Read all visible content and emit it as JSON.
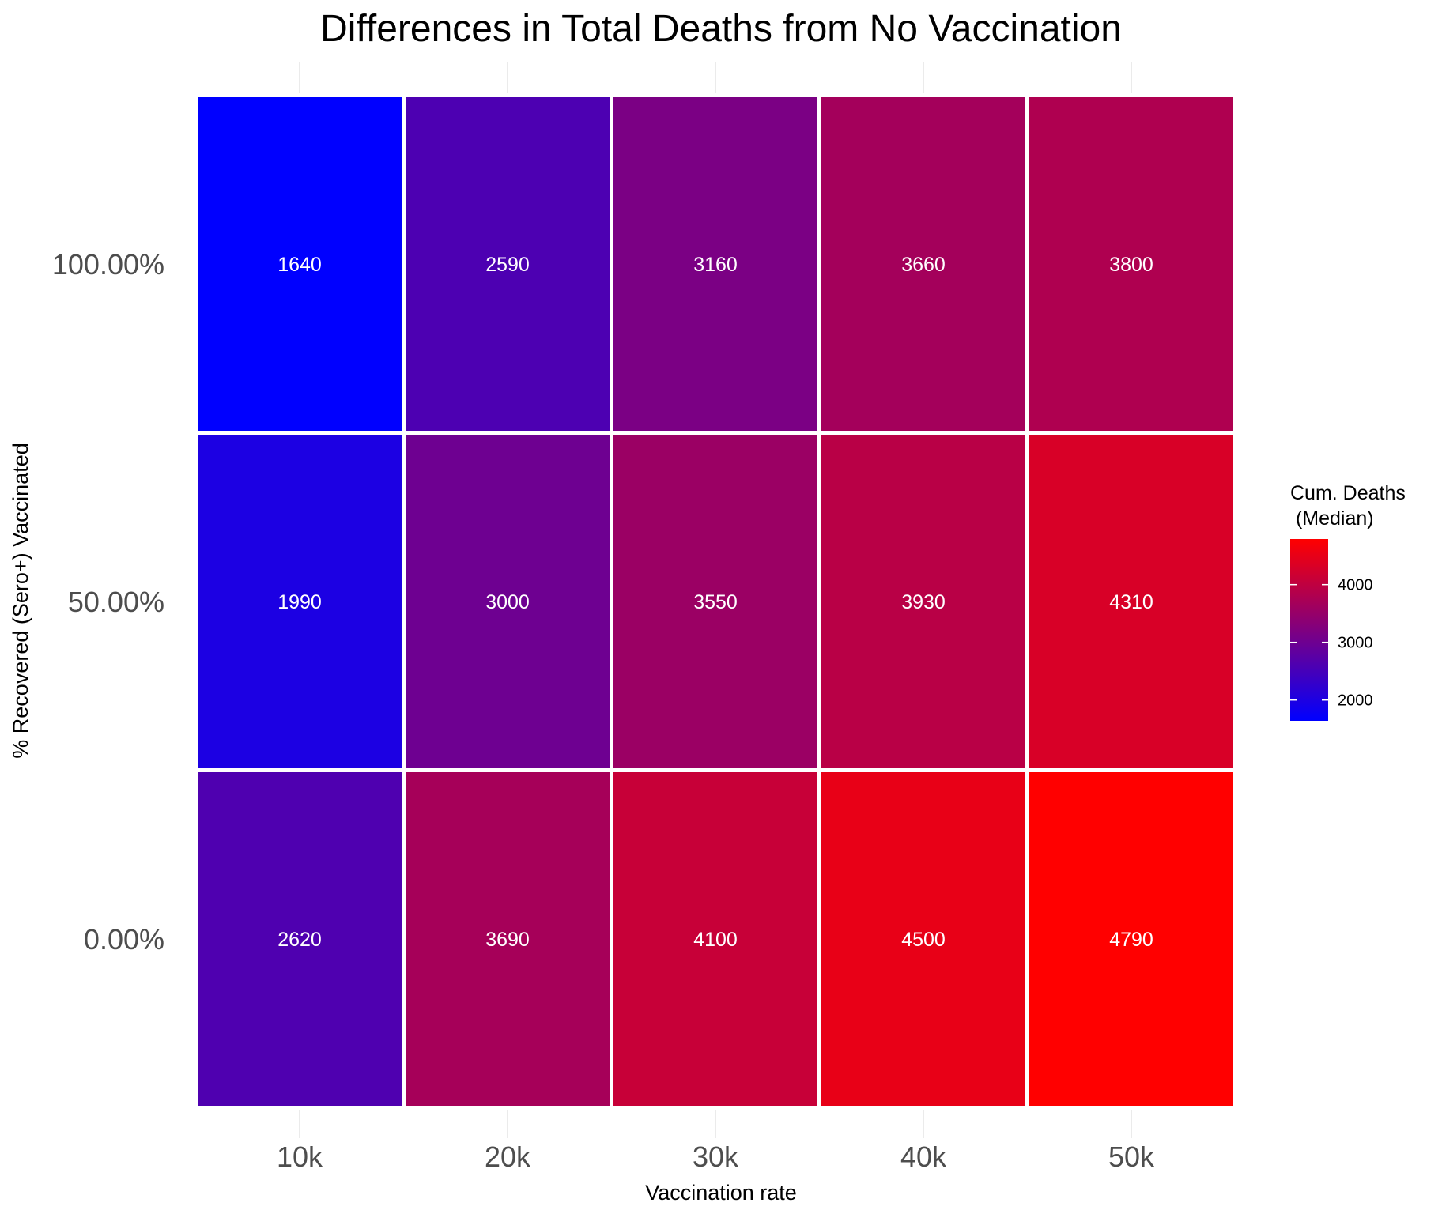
{
  "chart_data": {
    "type": "heatmap",
    "title": "Differences in Total Deaths from No Vaccination",
    "xlabel": "Vaccination rate",
    "ylabel": "% Recovered (Sero+) Vaccinated",
    "x_categories": [
      "10k",
      "20k",
      "30k",
      "40k",
      "50k"
    ],
    "y_categories": [
      "0.00%",
      "50.00%",
      "100.00%"
    ],
    "values": [
      [
        2620,
        3690,
        4100,
        4500,
        4790
      ],
      [
        1990,
        3000,
        3550,
        3930,
        4310
      ],
      [
        1640,
        2590,
        3160,
        3660,
        3800
      ]
    ],
    "legend": {
      "title_line1": "Cum. Deaths",
      "title_line2": " (Median)",
      "ticks": [
        2000,
        3000,
        4000
      ],
      "color_low": "#0000ff",
      "color_high": "#ff0000",
      "range": [
        1640,
        4790
      ]
    },
    "grid": true
  }
}
